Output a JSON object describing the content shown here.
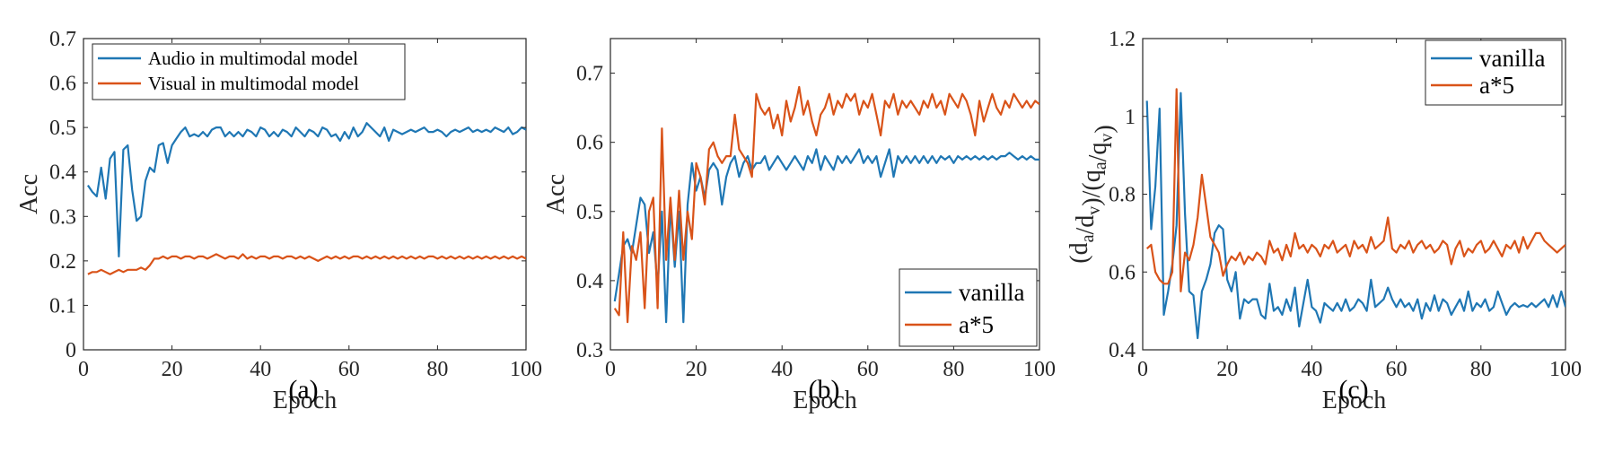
{
  "colors": {
    "blue": "#1f77b4",
    "orange": "#d95319"
  },
  "chart_data": [
    {
      "type": "line",
      "panel_label": "(a)",
      "xlabel": "Epoch",
      "ylabel": "Acc",
      "xlim": [
        0,
        100
      ],
      "ylim": [
        0,
        0.7
      ],
      "xticks": [
        0,
        20,
        40,
        60,
        80,
        100
      ],
      "yticks": [
        0,
        0.1,
        0.2,
        0.3,
        0.4,
        0.5,
        0.6,
        0.7
      ],
      "ytick_labels": [
        "0",
        "0.1",
        "0.2",
        "0.3",
        "0.4",
        "0.5",
        "0.6",
        "0.7"
      ],
      "legend": "top-left",
      "series": [
        {
          "name": "Audio in multimodal model",
          "color": "#1f77b4",
          "values": [
            0.37,
            0.355,
            0.345,
            0.41,
            0.34,
            0.43,
            0.445,
            0.21,
            0.45,
            0.46,
            0.36,
            0.29,
            0.3,
            0.38,
            0.41,
            0.4,
            0.46,
            0.465,
            0.42,
            0.46,
            0.475,
            0.49,
            0.5,
            0.48,
            0.485,
            0.48,
            0.49,
            0.48,
            0.495,
            0.5,
            0.5,
            0.48,
            0.49,
            0.48,
            0.49,
            0.48,
            0.495,
            0.49,
            0.48,
            0.5,
            0.495,
            0.48,
            0.49,
            0.48,
            0.495,
            0.49,
            0.48,
            0.5,
            0.49,
            0.48,
            0.495,
            0.49,
            0.48,
            0.5,
            0.495,
            0.48,
            0.485,
            0.47,
            0.49,
            0.475,
            0.5,
            0.48,
            0.49,
            0.51,
            0.5,
            0.49,
            0.48,
            0.5,
            0.47,
            0.495,
            0.49,
            0.485,
            0.49,
            0.495,
            0.49,
            0.495,
            0.5,
            0.49,
            0.49,
            0.495,
            0.49,
            0.48,
            0.49,
            0.495,
            0.49,
            0.495,
            0.5,
            0.49,
            0.495,
            0.49,
            0.495,
            0.49,
            0.5,
            0.495,
            0.49,
            0.5,
            0.485,
            0.49,
            0.5,
            0.495
          ]
        },
        {
          "name": "Visual in multimodal model",
          "color": "#d95319",
          "values": [
            0.17,
            0.175,
            0.175,
            0.18,
            0.175,
            0.17,
            0.175,
            0.18,
            0.175,
            0.18,
            0.18,
            0.18,
            0.185,
            0.18,
            0.19,
            0.205,
            0.205,
            0.21,
            0.205,
            0.21,
            0.21,
            0.205,
            0.21,
            0.21,
            0.205,
            0.21,
            0.21,
            0.205,
            0.21,
            0.215,
            0.21,
            0.205,
            0.21,
            0.21,
            0.205,
            0.215,
            0.205,
            0.21,
            0.205,
            0.21,
            0.21,
            0.205,
            0.21,
            0.21,
            0.205,
            0.21,
            0.21,
            0.205,
            0.21,
            0.205,
            0.21,
            0.205,
            0.2,
            0.205,
            0.21,
            0.205,
            0.21,
            0.205,
            0.21,
            0.205,
            0.21,
            0.21,
            0.205,
            0.21,
            0.205,
            0.21,
            0.205,
            0.21,
            0.205,
            0.21,
            0.205,
            0.21,
            0.205,
            0.21,
            0.205,
            0.21,
            0.205,
            0.21,
            0.21,
            0.205,
            0.21,
            0.205,
            0.21,
            0.205,
            0.21,
            0.205,
            0.21,
            0.205,
            0.21,
            0.205,
            0.21,
            0.205,
            0.21,
            0.205,
            0.21,
            0.205,
            0.21,
            0.205,
            0.21,
            0.205
          ]
        }
      ]
    },
    {
      "type": "line",
      "panel_label": "(b)",
      "xlabel": "Epoch",
      "ylabel": "Acc",
      "xlim": [
        0,
        100
      ],
      "ylim": [
        0.3,
        0.75
      ],
      "xticks": [
        0,
        20,
        40,
        60,
        80,
        100
      ],
      "yticks": [
        0.3,
        0.4,
        0.5,
        0.6,
        0.7
      ],
      "ytick_labels": [
        "0.3",
        "0.4",
        "0.5",
        "0.6",
        "0.7"
      ],
      "legend": "bottom-right",
      "series": [
        {
          "name": "vanilla",
          "color": "#1f77b4",
          "values": [
            0.37,
            0.41,
            0.45,
            0.46,
            0.44,
            0.48,
            0.52,
            0.51,
            0.44,
            0.47,
            0.39,
            0.5,
            0.34,
            0.51,
            0.42,
            0.5,
            0.34,
            0.51,
            0.57,
            0.53,
            0.55,
            0.52,
            0.56,
            0.57,
            0.56,
            0.51,
            0.55,
            0.57,
            0.58,
            0.55,
            0.57,
            0.58,
            0.56,
            0.57,
            0.57,
            0.58,
            0.56,
            0.57,
            0.58,
            0.57,
            0.56,
            0.57,
            0.58,
            0.57,
            0.56,
            0.58,
            0.57,
            0.59,
            0.56,
            0.58,
            0.57,
            0.56,
            0.58,
            0.57,
            0.58,
            0.57,
            0.58,
            0.59,
            0.57,
            0.58,
            0.57,
            0.58,
            0.55,
            0.57,
            0.59,
            0.55,
            0.58,
            0.57,
            0.58,
            0.57,
            0.58,
            0.57,
            0.58,
            0.57,
            0.58,
            0.57,
            0.58,
            0.575,
            0.58,
            0.57,
            0.58,
            0.575,
            0.58,
            0.575,
            0.58,
            0.575,
            0.58,
            0.575,
            0.58,
            0.575,
            0.58,
            0.58,
            0.585,
            0.58,
            0.575,
            0.58,
            0.575,
            0.58,
            0.575,
            0.575
          ]
        },
        {
          "name": "a*5",
          "color": "#d95319",
          "values": [
            0.36,
            0.35,
            0.47,
            0.34,
            0.45,
            0.43,
            0.47,
            0.36,
            0.5,
            0.52,
            0.36,
            0.62,
            0.43,
            0.52,
            0.43,
            0.53,
            0.43,
            0.5,
            0.46,
            0.57,
            0.55,
            0.51,
            0.59,
            0.6,
            0.58,
            0.57,
            0.58,
            0.58,
            0.64,
            0.59,
            0.58,
            0.57,
            0.55,
            0.67,
            0.65,
            0.64,
            0.65,
            0.62,
            0.64,
            0.61,
            0.66,
            0.63,
            0.65,
            0.68,
            0.64,
            0.66,
            0.63,
            0.61,
            0.64,
            0.65,
            0.67,
            0.64,
            0.66,
            0.65,
            0.67,
            0.66,
            0.67,
            0.64,
            0.66,
            0.65,
            0.67,
            0.64,
            0.61,
            0.66,
            0.65,
            0.67,
            0.64,
            0.66,
            0.65,
            0.66,
            0.65,
            0.64,
            0.66,
            0.65,
            0.67,
            0.65,
            0.66,
            0.64,
            0.67,
            0.66,
            0.65,
            0.67,
            0.66,
            0.64,
            0.61,
            0.66,
            0.63,
            0.65,
            0.67,
            0.65,
            0.64,
            0.66,
            0.65,
            0.67,
            0.66,
            0.65,
            0.66,
            0.65,
            0.66,
            0.655
          ]
        }
      ]
    },
    {
      "type": "line",
      "panel_label": "(c)",
      "xlabel": "Epoch",
      "ylabel": "(d_a/d_v)/(q_a/q_v)",
      "xlim": [
        0,
        100
      ],
      "ylim": [
        0.4,
        1.2
      ],
      "xticks": [
        0,
        20,
        40,
        60,
        80,
        100
      ],
      "yticks": [
        0.4,
        0.6,
        0.8,
        1.0,
        1.2
      ],
      "ytick_labels": [
        "0.4",
        "0.6",
        "0.8",
        "1",
        "1.2"
      ],
      "legend": "top-right",
      "series": [
        {
          "name": "vanilla",
          "color": "#1f77b4",
          "values": [
            1.04,
            0.71,
            0.82,
            1.02,
            0.49,
            0.55,
            0.62,
            0.72,
            1.06,
            0.75,
            0.55,
            0.54,
            0.43,
            0.55,
            0.58,
            0.62,
            0.7,
            0.72,
            0.71,
            0.58,
            0.55,
            0.6,
            0.48,
            0.53,
            0.52,
            0.53,
            0.53,
            0.49,
            0.48,
            0.57,
            0.5,
            0.51,
            0.49,
            0.53,
            0.5,
            0.56,
            0.46,
            0.52,
            0.58,
            0.51,
            0.5,
            0.47,
            0.52,
            0.51,
            0.5,
            0.52,
            0.5,
            0.53,
            0.5,
            0.51,
            0.53,
            0.52,
            0.5,
            0.58,
            0.51,
            0.52,
            0.53,
            0.56,
            0.53,
            0.51,
            0.53,
            0.51,
            0.52,
            0.5,
            0.53,
            0.48,
            0.52,
            0.5,
            0.54,
            0.5,
            0.53,
            0.52,
            0.49,
            0.51,
            0.53,
            0.5,
            0.55,
            0.5,
            0.52,
            0.51,
            0.53,
            0.5,
            0.51,
            0.55,
            0.52,
            0.49,
            0.51,
            0.52,
            0.51,
            0.515,
            0.51,
            0.52,
            0.51,
            0.52,
            0.53,
            0.51,
            0.54,
            0.51,
            0.55,
            0.51
          ]
        },
        {
          "name": "a*5",
          "color": "#d95319",
          "values": [
            0.66,
            0.67,
            0.6,
            0.58,
            0.57,
            0.57,
            0.6,
            1.07,
            0.55,
            0.65,
            0.63,
            0.67,
            0.74,
            0.85,
            0.77,
            0.69,
            0.67,
            0.65,
            0.59,
            0.62,
            0.64,
            0.63,
            0.65,
            0.62,
            0.64,
            0.63,
            0.65,
            0.64,
            0.62,
            0.68,
            0.65,
            0.66,
            0.63,
            0.67,
            0.64,
            0.7,
            0.66,
            0.67,
            0.65,
            0.67,
            0.66,
            0.64,
            0.67,
            0.66,
            0.68,
            0.65,
            0.66,
            0.67,
            0.64,
            0.68,
            0.66,
            0.67,
            0.65,
            0.69,
            0.66,
            0.67,
            0.68,
            0.74,
            0.66,
            0.65,
            0.67,
            0.66,
            0.68,
            0.65,
            0.67,
            0.68,
            0.66,
            0.67,
            0.65,
            0.66,
            0.68,
            0.67,
            0.62,
            0.66,
            0.68,
            0.64,
            0.66,
            0.65,
            0.67,
            0.68,
            0.65,
            0.66,
            0.68,
            0.66,
            0.64,
            0.67,
            0.66,
            0.68,
            0.65,
            0.69,
            0.66,
            0.68,
            0.7,
            0.7,
            0.68,
            0.67,
            0.66,
            0.65,
            0.66,
            0.67
          ]
        }
      ]
    }
  ]
}
